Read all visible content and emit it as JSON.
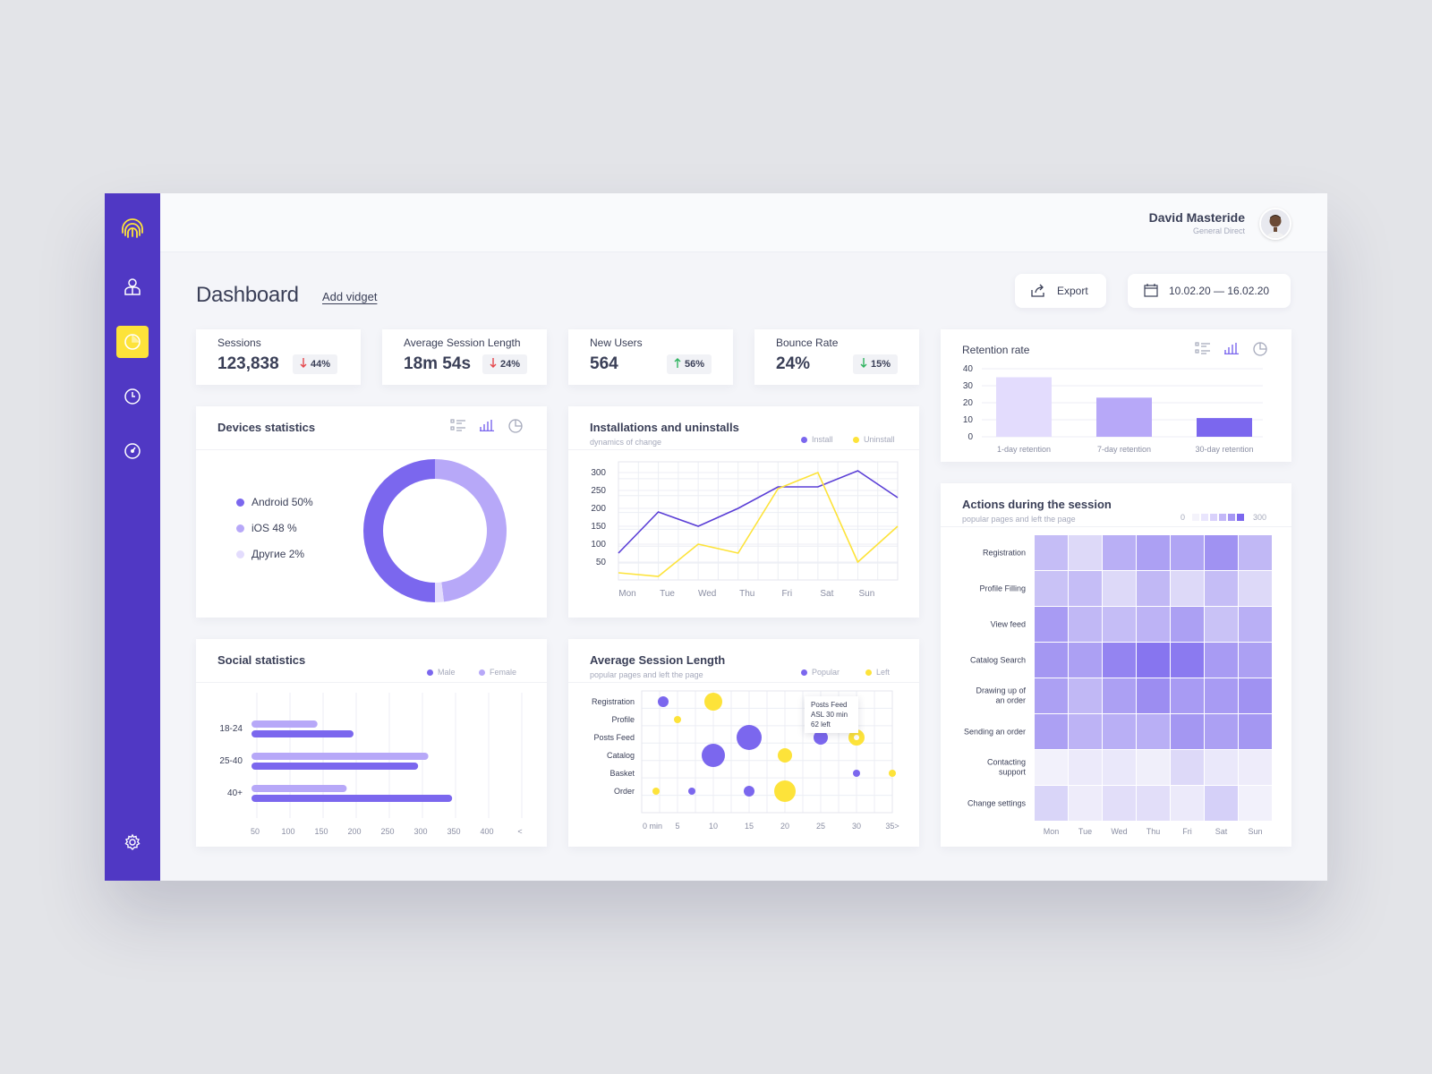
{
  "colors": {
    "sidebar": "#5038c4",
    "accent": "#fde33a",
    "purple": "#7b67ee",
    "purple_light": "#b7a8f8",
    "purple_lighter": "#e3dcfd",
    "yellow": "#fde33a",
    "down": "#e5484d",
    "up": "#2fb35f"
  },
  "sidebar": {
    "items": [
      {
        "icon": "fingerprint-logo-icon"
      },
      {
        "icon": "user-icon"
      },
      {
        "icon": "pie-chart-icon",
        "active": true
      },
      {
        "icon": "clock-icon"
      },
      {
        "icon": "speedometer-icon"
      },
      {
        "icon": "gear-icon"
      }
    ]
  },
  "header": {
    "user_name": "David Masteride",
    "user_role": "General Direct"
  },
  "page": {
    "title": "Dashboard",
    "add_widget": "Add vidget",
    "export_label": "Export",
    "date_range": "10.02.20 — 16.02.20"
  },
  "kpis": [
    {
      "label": "Sessions",
      "value": "123,838",
      "change": "44%",
      "direction": "down"
    },
    {
      "label": "Average Session Length",
      "value": "18m 54s",
      "change": "24%",
      "direction": "down"
    },
    {
      "label": "New Users",
      "value": "564",
      "change": "56%",
      "direction": "up"
    },
    {
      "label": "Bounce Rate",
      "value": "24%",
      "change": "15%",
      "direction": "down"
    }
  ],
  "devices": {
    "title": "Devices statistics"
  },
  "installs": {
    "title": "Installations and uninstalls",
    "subtitle": "dynamics of change"
  },
  "social": {
    "title": "Social statistics"
  },
  "asl": {
    "title": "Average Session Length",
    "subtitle": "popular pages and left the page",
    "tooltip": {
      "line1": "Posts Feed",
      "line2": "ASL 30 min",
      "line3": "62 left"
    }
  },
  "retention": {
    "title": "Retention rate"
  },
  "actions": {
    "title": "Actions during the session",
    "subtitle": "popular pages and left the page",
    "scale_min": "0",
    "scale_max": "300"
  },
  "chart_data": [
    {
      "id": "devices",
      "type": "pie",
      "donut": true,
      "series": [
        {
          "name": "Android 50%",
          "value": 50,
          "color": "#7b67ee"
        },
        {
          "name": "iOS 48 %",
          "value": 48,
          "color": "#b7a8f8"
        },
        {
          "name": "Другие 2%",
          "value": 2,
          "color": "#e3dcfd"
        }
      ]
    },
    {
      "id": "installs",
      "type": "line",
      "categories": [
        "Mon",
        "Tue",
        "Wed",
        "Thu",
        "Fri",
        "Sat",
        "Sun"
      ],
      "x": [
        0,
        1,
        2,
        3,
        4,
        5,
        6,
        7
      ],
      "yticks": [
        50,
        100,
        150,
        200,
        250,
        300
      ],
      "ylim": [
        0,
        330
      ],
      "series": [
        {
          "name": "Install",
          "color": "#5a3ed6",
          "values": [
            75,
            190,
            150,
            200,
            260,
            260,
            305,
            230
          ]
        },
        {
          "name": "Uninstall",
          "color": "#fde33a",
          "values": [
            20,
            10,
            100,
            75,
            255,
            300,
            50,
            150
          ]
        }
      ]
    },
    {
      "id": "social",
      "type": "bar",
      "orientation": "horizontal",
      "categories": [
        "18-24",
        "25-40",
        "40+"
      ],
      "xticks": [
        "50",
        "100",
        "150",
        "200",
        "250",
        "300",
        "350",
        "400",
        "<"
      ],
      "xlim": [
        40,
        440
      ],
      "series": [
        {
          "name": "Male",
          "color": "#7b67ee",
          "values": [
            190,
            285,
            335
          ]
        },
        {
          "name": "Female",
          "color": "#b7a8f8",
          "values": [
            137,
            300,
            180
          ]
        }
      ]
    },
    {
      "id": "asl",
      "type": "scatter",
      "categories": [
        "Registration",
        "Profile",
        "Posts Feed",
        "Catalog",
        "Basket",
        "Order"
      ],
      "xticks": [
        "0 min",
        "5",
        "10",
        "15",
        "20",
        "25",
        "30",
        "35>"
      ],
      "xlim": [
        0,
        35
      ],
      "series": [
        {
          "name": "Popular",
          "color": "#7b67ee",
          "points": [
            {
              "x": 3,
              "y": "Registration",
              "r": 6
            },
            {
              "x": 15,
              "y": "Posts Feed",
              "r": 14
            },
            {
              "x": 25,
              "y": "Posts Feed",
              "r": 8
            },
            {
              "x": 10,
              "y": "Catalog",
              "r": 13
            },
            {
              "x": 30,
              "y": "Basket",
              "r": 4
            },
            {
              "x": 7,
              "y": "Order",
              "r": 4
            },
            {
              "x": 15,
              "y": "Order",
              "r": 6
            }
          ]
        },
        {
          "name": "Left",
          "color": "#fde33a",
          "points": [
            {
              "x": 10,
              "y": "Registration",
              "r": 10
            },
            {
              "x": 5,
              "y": "Profile",
              "r": 4
            },
            {
              "x": 20,
              "y": "Catalog",
              "r": 8
            },
            {
              "x": 30,
              "y": "Posts Feed",
              "r": 9
            },
            {
              "x": 35,
              "y": "Basket",
              "r": 4
            },
            {
              "x": 2,
              "y": "Order",
              "r": 4
            },
            {
              "x": 20,
              "y": "Order",
              "r": 12
            }
          ]
        }
      ]
    },
    {
      "id": "retention",
      "type": "bar",
      "categories": [
        "1-day retention",
        "7-day retention",
        "30-day retention"
      ],
      "values": [
        35,
        23,
        11
      ],
      "yticks": [
        0,
        10,
        20,
        30,
        40
      ],
      "ylim": [
        0,
        40
      ],
      "colors": [
        "#e3dcfd",
        "#b7a8f8",
        "#7b67ee"
      ]
    },
    {
      "id": "actions",
      "type": "heatmap",
      "rows": [
        "Registration",
        "Profile Filling",
        "View feed",
        "Catalog Search",
        "Drawing up of an order",
        "Sending an order",
        "Contacting support",
        "Change settings"
      ],
      "columns": [
        "Mon",
        "Tue",
        "Wed",
        "Thu",
        "Fri",
        "Sat",
        "Sun"
      ],
      "values": [
        [
          120,
          60,
          150,
          180,
          170,
          210,
          130
        ],
        [
          110,
          120,
          60,
          130,
          60,
          120,
          60
        ],
        [
          190,
          130,
          120,
          140,
          180,
          110,
          150
        ],
        [
          200,
          180,
          240,
          270,
          260,
          190,
          180
        ],
        [
          180,
          130,
          180,
          220,
          190,
          190,
          210
        ],
        [
          180,
          140,
          150,
          150,
          200,
          180,
          200
        ],
        [
          10,
          25,
          30,
          15,
          60,
          30,
          20
        ],
        [
          70,
          20,
          50,
          50,
          25,
          80,
          10
        ]
      ],
      "scale": [
        0,
        300
      ]
    }
  ]
}
